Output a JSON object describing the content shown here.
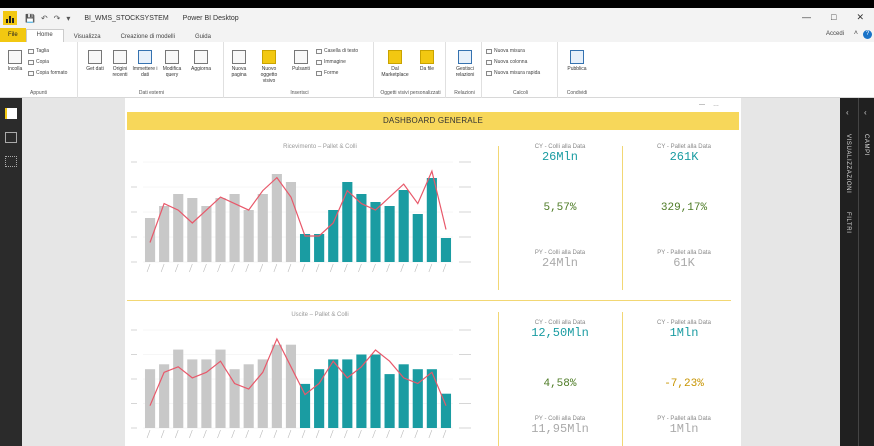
{
  "window": {
    "file_name": "BI_WMS_STOCKSYSTEM",
    "app_name": "Power BI Desktop",
    "sign_in": "Accedi",
    "help": "?"
  },
  "menu": {
    "tabs": [
      "File",
      "Home",
      "Visualizza",
      "Creazione di modelli",
      "Guida"
    ]
  },
  "ribbon": {
    "incolla": "Incolla",
    "taglia": "Taglia",
    "copia": "Copia",
    "copia_formato": "Copia formato",
    "appunti": "Appunti",
    "dati_esterni": "Dati esterni",
    "inserisci": "Inserisci",
    "oggetti_visivi": "Oggetti visivi personalizzati",
    "relazioni": "Relazioni",
    "calcoli": "Calcoli",
    "condividi": "Condividi",
    "btn_get_data": "Get\ndati",
    "btn_origini": "Origini\nrecenti",
    "btn_inserisci_dati": "Immettere\ni dati",
    "btn_modifica_query": "Modifica\nquery",
    "btn_aggiorna": "Aggiorna",
    "btn_nuova_pagina": "Nuova\npagina",
    "btn_nuovo_oggetto": "Nuovo\noggetto visivo",
    "btn_pulsanti": "Pulsanti",
    "btn_casella": "Casella di testo",
    "btn_immagine": "Immagine",
    "btn_forme": "Forme",
    "btn_marketplace": "Dal\nMarketplace",
    "btn_da_file": "Da\nfile",
    "btn_gestisci_rel": "Gestisci\nrelazioni",
    "btn_nuova_misura": "Nuova misura",
    "btn_nuova_colonna": "Nuova colonna",
    "btn_misura_rapida": "Nuova misura rapida",
    "btn_pubblica": "Pubblica"
  },
  "dashboard": {
    "header": "DASHBOARD GENERALE",
    "menu_dots": "…",
    "section1": {
      "chart_title": "Ricevimento – Pallet & Colli",
      "kpi": [
        {
          "label": "CY - Colli alla Data",
          "value": "26Mln"
        },
        {
          "label": "CY - Pallet alla Data",
          "value": "261K"
        },
        {
          "label": "",
          "value": "5,57%"
        },
        {
          "label": "",
          "value": "329,17%"
        },
        {
          "label": "PY - Colli alla Data",
          "value": "24Mln"
        },
        {
          "label": "PY - Pallet alla Data",
          "value": "61K"
        }
      ]
    },
    "section2": {
      "chart_title": "Uscite – Pallet & Colli",
      "kpi": [
        {
          "label": "CY - Colli alla Data",
          "value": "12,50Mln"
        },
        {
          "label": "CY - Pallet alla Data",
          "value": "1Mln"
        },
        {
          "label": "",
          "value": "4,58%"
        },
        {
          "label": "",
          "value": "-7,23%"
        },
        {
          "label": "PY - Colli alla Data",
          "value": "11,95Mln"
        },
        {
          "label": "PY - Pallet alla Data",
          "value": "1Mln"
        }
      ]
    }
  },
  "right_panels": {
    "visualizzazioni": "VISUALIZZAZIONI",
    "filtri": "FILTRI",
    "campi": "CAMPI"
  },
  "colors": {
    "accent": "#f2c811",
    "header_band": "#f7d75a",
    "teal": "#1a9ca2",
    "green": "#4d7b25",
    "amber": "#c79400",
    "grey_bar": "#c8c8c8",
    "line": "#e8586a"
  },
  "chart_data": [
    {
      "type": "bar",
      "title": "Ricevimento – Pallet & Colli",
      "series": [
        {
          "name": "",
          "values": [
            11,
            14,
            17,
            16,
            14,
            16,
            17,
            13,
            17,
            22,
            20,
            7,
            7,
            13,
            20,
            17,
            15,
            14,
            18,
            12,
            21,
            6
          ]
        },
        {
          "name": "",
          "values": [
            3,
            9,
            8,
            6,
            8,
            10,
            9,
            8,
            11,
            13,
            10,
            4,
            4,
            6,
            11,
            9,
            8,
            10,
            12,
            9,
            14,
            5
          ]
        }
      ],
      "ylim": [
        0,
        25
      ],
      "highlight_from_index": 11
    },
    {
      "type": "bar",
      "title": "Uscite – Pallet & Colli",
      "series": [
        {
          "name": "",
          "values": [
            12,
            13,
            16,
            14,
            14,
            16,
            12,
            13,
            14,
            17,
            17,
            9,
            12,
            14,
            14,
            15,
            15,
            11,
            13,
            12,
            12,
            7
          ]
        },
        {
          "name": "",
          "values": [
            4,
            10,
            11,
            9,
            10,
            12,
            8,
            7,
            10,
            16,
            11,
            6,
            8,
            12,
            9,
            11,
            14,
            12,
            9,
            8,
            10,
            4
          ]
        }
      ],
      "ylim": [
        0,
        20
      ],
      "highlight_from_index": 11
    }
  ]
}
